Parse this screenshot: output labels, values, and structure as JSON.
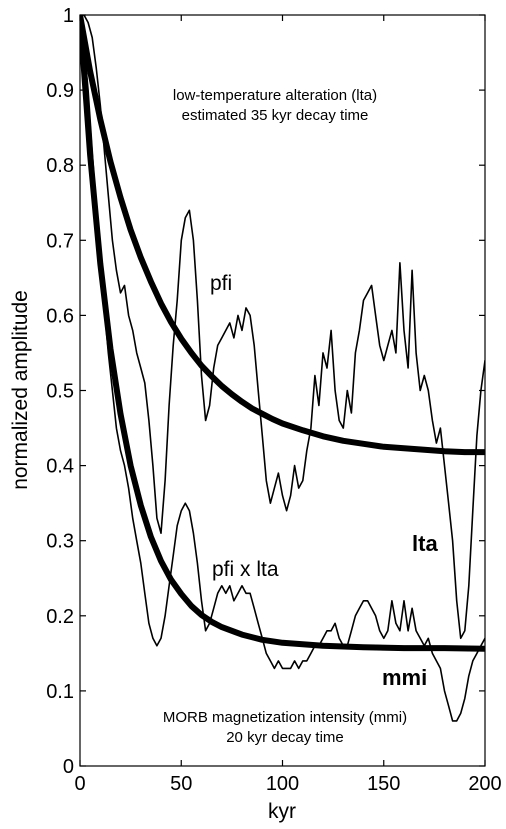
{
  "chart_data": {
    "type": "line",
    "xlabel": "kyr",
    "ylabel": "normalized amplitude",
    "xlim": [
      0,
      200
    ],
    "ylim": [
      0,
      1
    ],
    "xticks": [
      0,
      50,
      100,
      150,
      200
    ],
    "yticks": [
      0,
      0.1,
      0.2,
      0.3,
      0.4,
      0.5,
      0.6,
      0.7,
      0.8,
      0.9,
      1
    ],
    "grid": false,
    "annotations": {
      "lta_title_line1": "low-temperature alteration (lta)",
      "lta_title_line2": "estimated 35 kyr decay time",
      "mmi_title_line1": "MORB magnetization intensity (mmi)",
      "mmi_title_line2": "20 kyr decay time",
      "pfi_label": "pfi",
      "pfi_lta_label": "pfi x lta",
      "lta_label": "lta",
      "mmi_label": "mmi"
    },
    "series": [
      {
        "name": "lta",
        "style": "thick",
        "x": [
          0,
          5,
          10,
          15,
          20,
          25,
          30,
          35,
          40,
          45,
          50,
          55,
          60,
          65,
          70,
          75,
          80,
          85,
          90,
          95,
          100,
          110,
          120,
          130,
          140,
          150,
          160,
          170,
          180,
          190,
          200
        ],
        "y": [
          1,
          0.925,
          0.861,
          0.805,
          0.757,
          0.714,
          0.677,
          0.645,
          0.616,
          0.591,
          0.569,
          0.55,
          0.533,
          0.519,
          0.506,
          0.495,
          0.485,
          0.476,
          0.469,
          0.462,
          0.456,
          0.447,
          0.439,
          0.433,
          0.429,
          0.425,
          0.423,
          0.421,
          0.419,
          0.418,
          0.418
        ]
      },
      {
        "name": "mmi",
        "style": "thick",
        "x": [
          0,
          5,
          10,
          15,
          20,
          25,
          30,
          35,
          40,
          45,
          50,
          55,
          60,
          65,
          70,
          80,
          90,
          100,
          120,
          140,
          160,
          180,
          200
        ],
        "y": [
          1,
          0.814,
          0.669,
          0.556,
          0.469,
          0.4,
          0.347,
          0.305,
          0.273,
          0.248,
          0.229,
          0.213,
          0.201,
          0.192,
          0.185,
          0.175,
          0.168,
          0.164,
          0.16,
          0.158,
          0.157,
          0.157,
          0.156
        ]
      },
      {
        "name": "pfi",
        "style": "thin",
        "x": [
          0,
          2,
          4,
          6,
          8,
          10,
          12,
          14,
          16,
          18,
          20,
          22,
          24,
          26,
          28,
          30,
          32,
          34,
          36,
          38,
          40,
          42,
          44,
          46,
          48,
          50,
          52,
          54,
          56,
          58,
          60,
          62,
          64,
          66,
          68,
          70,
          72,
          74,
          76,
          78,
          80,
          82,
          84,
          86,
          88,
          90,
          92,
          94,
          96,
          98,
          100,
          102,
          104,
          106,
          108,
          110,
          112,
          114,
          116,
          118,
          120,
          122,
          124,
          126,
          128,
          130,
          132,
          134,
          136,
          138,
          140,
          142,
          144,
          146,
          148,
          150,
          152,
          154,
          156,
          158,
          160,
          162,
          164,
          166,
          168,
          170,
          172,
          174,
          176,
          178,
          180,
          182,
          184,
          186,
          188,
          190,
          192,
          194,
          196,
          198,
          200
        ],
        "y": [
          1.0,
          1.0,
          0.99,
          0.97,
          0.93,
          0.88,
          0.82,
          0.76,
          0.7,
          0.66,
          0.63,
          0.64,
          0.6,
          0.58,
          0.55,
          0.53,
          0.51,
          0.46,
          0.4,
          0.33,
          0.31,
          0.38,
          0.48,
          0.56,
          0.62,
          0.7,
          0.73,
          0.74,
          0.7,
          0.62,
          0.52,
          0.46,
          0.48,
          0.53,
          0.56,
          0.57,
          0.58,
          0.59,
          0.57,
          0.6,
          0.58,
          0.61,
          0.6,
          0.56,
          0.5,
          0.44,
          0.38,
          0.35,
          0.37,
          0.39,
          0.36,
          0.34,
          0.36,
          0.4,
          0.37,
          0.38,
          0.42,
          0.45,
          0.52,
          0.48,
          0.55,
          0.53,
          0.58,
          0.5,
          0.46,
          0.45,
          0.5,
          0.47,
          0.55,
          0.58,
          0.62,
          0.63,
          0.64,
          0.6,
          0.56,
          0.54,
          0.56,
          0.58,
          0.55,
          0.67,
          0.58,
          0.53,
          0.66,
          0.55,
          0.5,
          0.52,
          0.5,
          0.46,
          0.43,
          0.45,
          0.4,
          0.35,
          0.3,
          0.22,
          0.17,
          0.18,
          0.24,
          0.34,
          0.44,
          0.5,
          0.54
        ]
      },
      {
        "name": "pfi x lta",
        "style": "thin",
        "x": [
          0,
          2,
          4,
          6,
          8,
          10,
          12,
          14,
          16,
          18,
          20,
          22,
          24,
          26,
          28,
          30,
          32,
          34,
          36,
          38,
          40,
          42,
          44,
          46,
          48,
          50,
          52,
          54,
          56,
          58,
          60,
          62,
          64,
          66,
          68,
          70,
          72,
          74,
          76,
          78,
          80,
          82,
          84,
          86,
          88,
          90,
          92,
          94,
          96,
          98,
          100,
          102,
          104,
          106,
          108,
          110,
          112,
          114,
          116,
          118,
          120,
          122,
          124,
          126,
          128,
          130,
          132,
          134,
          136,
          138,
          140,
          142,
          144,
          146,
          148,
          150,
          152,
          154,
          156,
          158,
          160,
          162,
          164,
          166,
          168,
          170,
          172,
          174,
          176,
          178,
          180,
          182,
          184,
          186,
          188,
          190,
          192,
          194,
          196,
          198,
          200
        ],
        "y": [
          1.0,
          0.96,
          0.9,
          0.82,
          0.74,
          0.67,
          0.61,
          0.55,
          0.5,
          0.45,
          0.42,
          0.4,
          0.37,
          0.33,
          0.3,
          0.27,
          0.23,
          0.19,
          0.17,
          0.16,
          0.17,
          0.2,
          0.24,
          0.28,
          0.32,
          0.34,
          0.35,
          0.34,
          0.31,
          0.27,
          0.22,
          0.18,
          0.19,
          0.21,
          0.23,
          0.24,
          0.23,
          0.24,
          0.22,
          0.23,
          0.24,
          0.23,
          0.23,
          0.21,
          0.19,
          0.17,
          0.15,
          0.14,
          0.13,
          0.14,
          0.13,
          0.13,
          0.13,
          0.14,
          0.13,
          0.14,
          0.14,
          0.15,
          0.16,
          0.16,
          0.17,
          0.18,
          0.18,
          0.19,
          0.17,
          0.16,
          0.16,
          0.18,
          0.2,
          0.21,
          0.22,
          0.22,
          0.21,
          0.2,
          0.18,
          0.17,
          0.18,
          0.22,
          0.19,
          0.18,
          0.22,
          0.18,
          0.21,
          0.18,
          0.17,
          0.16,
          0.17,
          0.15,
          0.14,
          0.13,
          0.1,
          0.08,
          0.06,
          0.06,
          0.07,
          0.09,
          0.12,
          0.14,
          0.15,
          0.16,
          0.17
        ]
      }
    ]
  }
}
